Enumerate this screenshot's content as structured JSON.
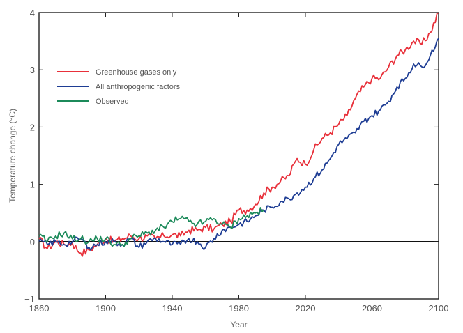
{
  "chart_data": {
    "type": "line",
    "title": "",
    "xlabel": "Year",
    "ylabel": "Temperature change (°C)",
    "xlim": [
      1860,
      2100
    ],
    "ylim": [
      -1,
      4
    ],
    "x_ticks": [
      1860,
      1900,
      1940,
      1980,
      2020,
      2060,
      2100
    ],
    "y_ticks": [
      -1,
      0,
      1,
      2,
      3,
      4
    ],
    "zero_line": 0,
    "grid": false,
    "legend_position": "top-left",
    "series": [
      {
        "name": "Greenhouse gases only",
        "color": "#e8303a",
        "points": [
          [
            1860,
            0.05
          ],
          [
            1865,
            -0.12
          ],
          [
            1870,
            0.0
          ],
          [
            1875,
            -0.05
          ],
          [
            1880,
            -0.03
          ],
          [
            1885,
            -0.2
          ],
          [
            1890,
            -0.15
          ],
          [
            1895,
            -0.05
          ],
          [
            1900,
            0.05
          ],
          [
            1905,
            0.0
          ],
          [
            1910,
            0.05
          ],
          [
            1915,
            0.1
          ],
          [
            1920,
            0.05
          ],
          [
            1925,
            0.1
          ],
          [
            1930,
            0.05
          ],
          [
            1935,
            0.1
          ],
          [
            1940,
            0.12
          ],
          [
            1945,
            0.1
          ],
          [
            1950,
            0.2
          ],
          [
            1955,
            0.2
          ],
          [
            1960,
            0.25
          ],
          [
            1965,
            0.22
          ],
          [
            1970,
            0.3
          ],
          [
            1975,
            0.35
          ],
          [
            1980,
            0.55
          ],
          [
            1985,
            0.55
          ],
          [
            1990,
            0.65
          ],
          [
            1995,
            0.85
          ],
          [
            2000,
            0.95
          ],
          [
            2005,
            1.05
          ],
          [
            2010,
            1.15
          ],
          [
            2015,
            1.45
          ],
          [
            2020,
            1.35
          ],
          [
            2025,
            1.6
          ],
          [
            2030,
            1.8
          ],
          [
            2035,
            1.9
          ],
          [
            2040,
            2.05
          ],
          [
            2045,
            2.2
          ],
          [
            2050,
            2.5
          ],
          [
            2055,
            2.7
          ],
          [
            2060,
            2.85
          ],
          [
            2065,
            2.85
          ],
          [
            2070,
            3.05
          ],
          [
            2075,
            3.25
          ],
          [
            2080,
            3.35
          ],
          [
            2085,
            3.5
          ],
          [
            2090,
            3.45
          ],
          [
            2095,
            3.65
          ],
          [
            2100,
            4.0
          ]
        ]
      },
      {
        "name": "All anthropogenic factors",
        "color": "#1e3d94",
        "points": [
          [
            1860,
            0.0
          ],
          [
            1865,
            -0.05
          ],
          [
            1870,
            0.0
          ],
          [
            1875,
            -0.05
          ],
          [
            1880,
            0.0
          ],
          [
            1885,
            0.05
          ],
          [
            1890,
            -0.1
          ],
          [
            1895,
            -0.05
          ],
          [
            1900,
            0.0
          ],
          [
            1905,
            0.0
          ],
          [
            1910,
            -0.05
          ],
          [
            1915,
            0.05
          ],
          [
            1920,
            -0.1
          ],
          [
            1925,
            0.0
          ],
          [
            1930,
            0.05
          ],
          [
            1935,
            0.0
          ],
          [
            1940,
            -0.05
          ],
          [
            1945,
            -0.05
          ],
          [
            1950,
            0.05
          ],
          [
            1955,
            0.0
          ],
          [
            1960,
            -0.1
          ],
          [
            1965,
            0.05
          ],
          [
            1970,
            0.2
          ],
          [
            1975,
            0.25
          ],
          [
            1980,
            0.3
          ],
          [
            1985,
            0.35
          ],
          [
            1990,
            0.45
          ],
          [
            1995,
            0.55
          ],
          [
            2000,
            0.6
          ],
          [
            2005,
            0.7
          ],
          [
            2010,
            0.75
          ],
          [
            2015,
            0.85
          ],
          [
            2020,
            0.95
          ],
          [
            2025,
            1.1
          ],
          [
            2030,
            1.25
          ],
          [
            2035,
            1.45
          ],
          [
            2040,
            1.7
          ],
          [
            2045,
            1.8
          ],
          [
            2050,
            1.9
          ],
          [
            2055,
            2.1
          ],
          [
            2060,
            2.2
          ],
          [
            2065,
            2.3
          ],
          [
            2070,
            2.45
          ],
          [
            2075,
            2.7
          ],
          [
            2080,
            2.85
          ],
          [
            2085,
            3.1
          ],
          [
            2090,
            3.05
          ],
          [
            2095,
            3.25
          ],
          [
            2100,
            3.55
          ]
        ]
      },
      {
        "name": "Observed",
        "color": "#1c8a5a",
        "points": [
          [
            1860,
            0.1
          ],
          [
            1865,
            0.0
          ],
          [
            1870,
            0.1
          ],
          [
            1875,
            0.15
          ],
          [
            1880,
            0.05
          ],
          [
            1885,
            0.05
          ],
          [
            1890,
            0.0
          ],
          [
            1895,
            0.05
          ],
          [
            1900,
            0.05
          ],
          [
            1905,
            -0.05
          ],
          [
            1910,
            -0.05
          ],
          [
            1915,
            0.05
          ],
          [
            1920,
            0.1
          ],
          [
            1925,
            0.15
          ],
          [
            1930,
            0.2
          ],
          [
            1935,
            0.25
          ],
          [
            1940,
            0.35
          ],
          [
            1945,
            0.4
          ],
          [
            1950,
            0.35
          ],
          [
            1955,
            0.3
          ],
          [
            1960,
            0.35
          ],
          [
            1965,
            0.4
          ],
          [
            1970,
            0.3
          ],
          [
            1975,
            0.25
          ],
          [
            1980,
            0.4
          ],
          [
            1985,
            0.45
          ],
          [
            1990,
            0.5
          ],
          [
            1995,
            0.55
          ]
        ]
      }
    ]
  }
}
